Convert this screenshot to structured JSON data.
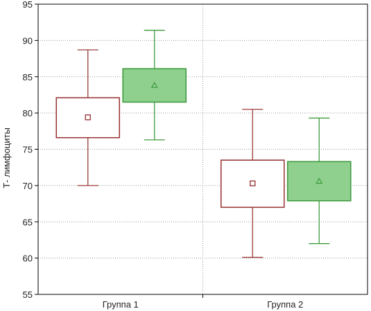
{
  "chart_data": {
    "type": "boxplot",
    "title": "",
    "xlabel": "",
    "ylabel": "Т- лимфоциты",
    "ylim": [
      55,
      95
    ],
    "yticks": [
      55,
      60,
      65,
      70,
      75,
      80,
      85,
      90,
      95
    ],
    "categories": [
      "Группа 1",
      "Группа 2"
    ],
    "grid": true,
    "series": [
      {
        "color": "#9b3a3a",
        "fill": "#ffffff",
        "marker": "square",
        "boxes": [
          {
            "category": "Группа 1",
            "whisker_low": 70.0,
            "q1": 76.6,
            "center": 79.4,
            "q3": 82.1,
            "whisker_high": 88.7
          },
          {
            "category": "Группа 2",
            "whisker_low": 60.1,
            "q1": 67.0,
            "center": 70.3,
            "q3": 73.5,
            "whisker_high": 80.5
          }
        ]
      },
      {
        "color": "#3f9a3f",
        "fill": "#8fd08f",
        "marker": "triangle",
        "boxes": [
          {
            "category": "Группа 1",
            "whisker_low": 76.3,
            "q1": 81.5,
            "center": 83.8,
            "q3": 86.1,
            "whisker_high": 91.4
          },
          {
            "category": "Группа 2",
            "whisker_low": 62.0,
            "q1": 67.9,
            "center": 70.6,
            "q3": 73.3,
            "whisker_high": 79.3
          }
        ]
      }
    ]
  }
}
